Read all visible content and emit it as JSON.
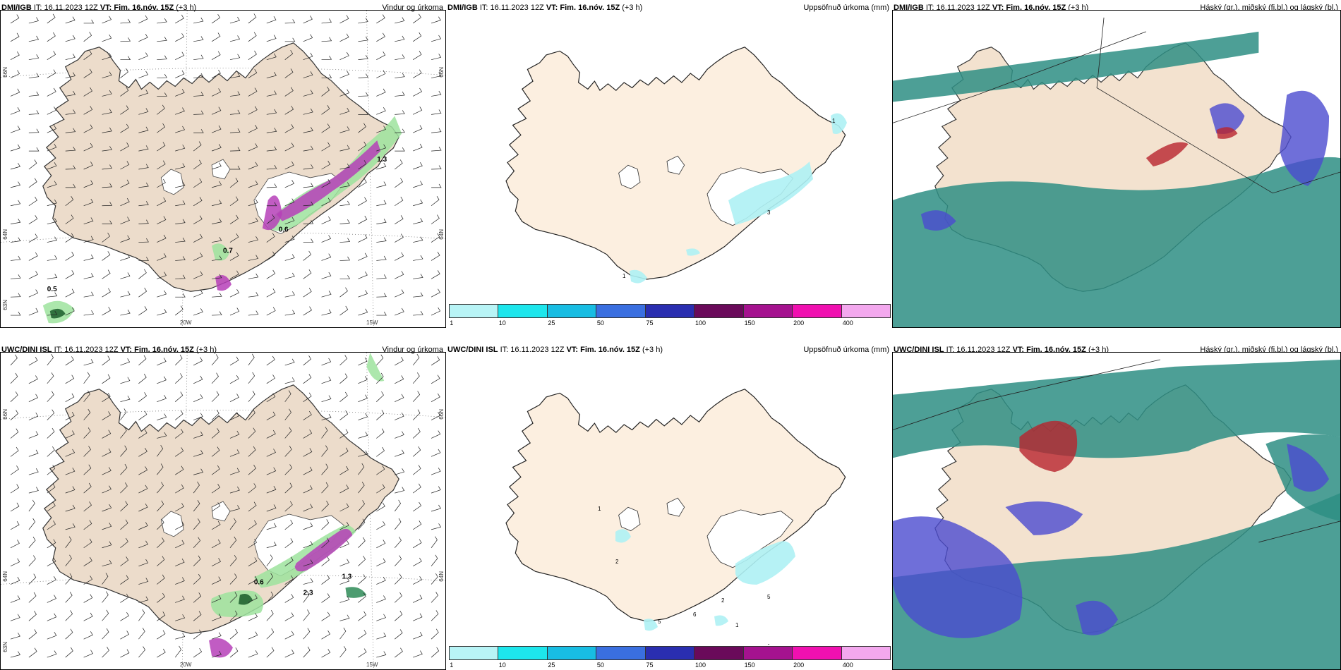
{
  "panels": {
    "p1": {
      "model": "DMI/IGB",
      "it_label": "IT:",
      "it": "16.11.2023 12Z",
      "vt_label": "VT:",
      "vt": "Fim. 16.nóv. 15Z",
      "lead": "(+3 h)",
      "title": "Vindur og úrkoma"
    },
    "p2": {
      "model": "DMI/IGB",
      "it_label": "IT:",
      "it": "16.11.2023 12Z",
      "vt_label": "VT:",
      "vt": "Fim. 16.nóv. 15Z",
      "lead": "(+3 h)",
      "title": "Uppsöfnuð úrkoma (mm)"
    },
    "p3": {
      "model": "DMI/IGB",
      "it_label": "IT:",
      "it": "16.11.2023 12Z",
      "vt_label": "VT:",
      "vt": "Fim. 16.nóv. 15Z",
      "lead": "(+3 h)",
      "title": "Háský (gr.), miðský (fj.bl.) og lágský (bl.)"
    },
    "p4": {
      "model": "UWC/DINI ISL",
      "it_label": "IT:",
      "it": "16.11.2023 12Z",
      "vt_label": "VT:",
      "vt": "Fim. 16.nóv. 15Z",
      "lead": "(+3 h)",
      "title": "Vindur og úrkoma"
    },
    "p5": {
      "model": "UWC/DINI ISL",
      "it_label": "IT:",
      "it": "16.11.2023 12Z",
      "vt_label": "VT:",
      "vt": "Fim. 16.nóv. 15Z",
      "lead": "(+3 h)",
      "title": "Uppsöfnuð úrkoma (mm)"
    },
    "p6": {
      "model": "UWC/DINI ISL",
      "it_label": "IT:",
      "it": "16.11.2023 12Z",
      "vt_label": "VT:",
      "vt": "Fim. 16.nóv. 15Z",
      "lead": "(+3 h)",
      "title": "Háský (gr.), miðský (fj.bl.) og lágský (bl.)"
    }
  },
  "coords": {
    "lat66": "66N",
    "lat64": "64N",
    "lat63": "63N",
    "lon20": "20W",
    "lon15": "15W"
  },
  "wind_labels_top": [
    "0.6",
    "0.7",
    "0.5",
    "1.3"
  ],
  "wind_labels_bottom": [
    "0.6",
    "1.3",
    "2.3"
  ],
  "precip_labels_top": [
    "1",
    "3",
    "1"
  ],
  "precip_labels_bottom": [
    "1",
    "2",
    "5",
    "6",
    "2",
    "5",
    "1",
    "1"
  ],
  "colorbar": {
    "colors": [
      "#b8f4f6",
      "#1de6ec",
      "#18bde3",
      "#3a6fe0",
      "#2a2eb0",
      "#6a0a5a",
      "#a5128f",
      "#f010b0",
      "#f3a8ee"
    ],
    "ticks": [
      "1",
      "10",
      "25",
      "50",
      "75",
      "100",
      "150",
      "200",
      "400"
    ]
  },
  "colors": {
    "land": "#f5e6d6",
    "landWind": "#ecdccb",
    "ocean": "#ffffff",
    "precipGreen": "#9de39d",
    "precipPurple": "#b63fb8",
    "cloudTeal": "#2e8e84",
    "cloudBlue": "#4b4bd0",
    "cloudRed": "#b8242d"
  }
}
